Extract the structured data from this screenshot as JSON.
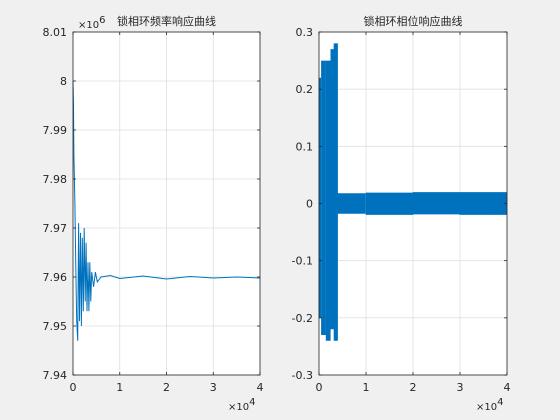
{
  "chart_data": [
    {
      "type": "line",
      "title": "锁相环频率响应曲线",
      "xlabel": "",
      "ylabel": "",
      "xlim": [
        0,
        40000
      ],
      "ylim": [
        7.94,
        8.01
      ],
      "x_ticks": [
        "0",
        "1",
        "2",
        "3",
        "4"
      ],
      "y_ticks": [
        "7.94",
        "7.95",
        "7.96",
        "7.97",
        "7.98",
        "7.99",
        "8",
        "8.01"
      ],
      "x_multiplier": {
        "base": "×10",
        "exp": "4"
      },
      "y_multiplier": {
        "base": "×10",
        "exp": "6"
      },
      "grid": true,
      "color": "#0072BD",
      "series": [
        {
          "x": [
            0,
            100,
            200,
            400,
            600,
            800,
            1000,
            1200,
            1400,
            1600,
            1800,
            2000,
            2200,
            2400,
            2600,
            2800,
            3000,
            3200,
            3400,
            3600,
            3800,
            4000,
            4400,
            4800,
            5200,
            6000,
            8000,
            10000,
            15000,
            20000,
            25000,
            30000,
            35000,
            40000
          ],
          "y": [
            8.0,
            7.995,
            7.985,
            7.975,
            7.962,
            7.951,
            7.947,
            7.971,
            7.951,
            7.969,
            7.95,
            7.968,
            7.953,
            7.97,
            7.955,
            7.967,
            7.953,
            7.963,
            7.953,
            7.963,
            7.955,
            7.961,
            7.958,
            7.961,
            7.959,
            7.96,
            7.9603,
            7.9597,
            7.9602,
            7.9596,
            7.9601,
            7.9598,
            7.96,
            7.9598
          ]
        }
      ]
    },
    {
      "type": "line",
      "title": "锁相环相位响应曲线",
      "xlabel": "",
      "ylabel": "",
      "xlim": [
        0,
        40000
      ],
      "ylim": [
        -0.3,
        0.3
      ],
      "x_ticks": [
        "0",
        "1",
        "2",
        "3",
        "4"
      ],
      "y_ticks": [
        "-0.3",
        "-0.2",
        "-0.1",
        "0",
        "0.1",
        "0.2",
        "0.3"
      ],
      "x_multiplier": {
        "base": "×10",
        "exp": "4"
      },
      "grid": true,
      "color": "#0072BD",
      "bands": [
        {
          "x_start": 0,
          "x_end": 500,
          "y_min": -0.2,
          "y_max": 0.22
        },
        {
          "x_start": 500,
          "x_end": 1500,
          "y_min": -0.23,
          "y_max": 0.25
        },
        {
          "x_start": 1500,
          "x_end": 2500,
          "y_min": -0.24,
          "y_max": 0.25
        },
        {
          "x_start": 2500,
          "x_end": 3200,
          "y_min": -0.22,
          "y_max": 0.27
        },
        {
          "x_start": 3200,
          "x_end": 4000,
          "y_min": -0.24,
          "y_max": 0.28
        },
        {
          "x_start": 4000,
          "x_end": 10000,
          "y_min": -0.018,
          "y_max": 0.018
        },
        {
          "x_start": 10000,
          "x_end": 20000,
          "y_min": -0.02,
          "y_max": 0.019
        },
        {
          "x_start": 20000,
          "x_end": 30000,
          "y_min": -0.019,
          "y_max": 0.02
        },
        {
          "x_start": 30000,
          "x_end": 40000,
          "y_min": -0.02,
          "y_max": 0.02
        }
      ]
    }
  ]
}
